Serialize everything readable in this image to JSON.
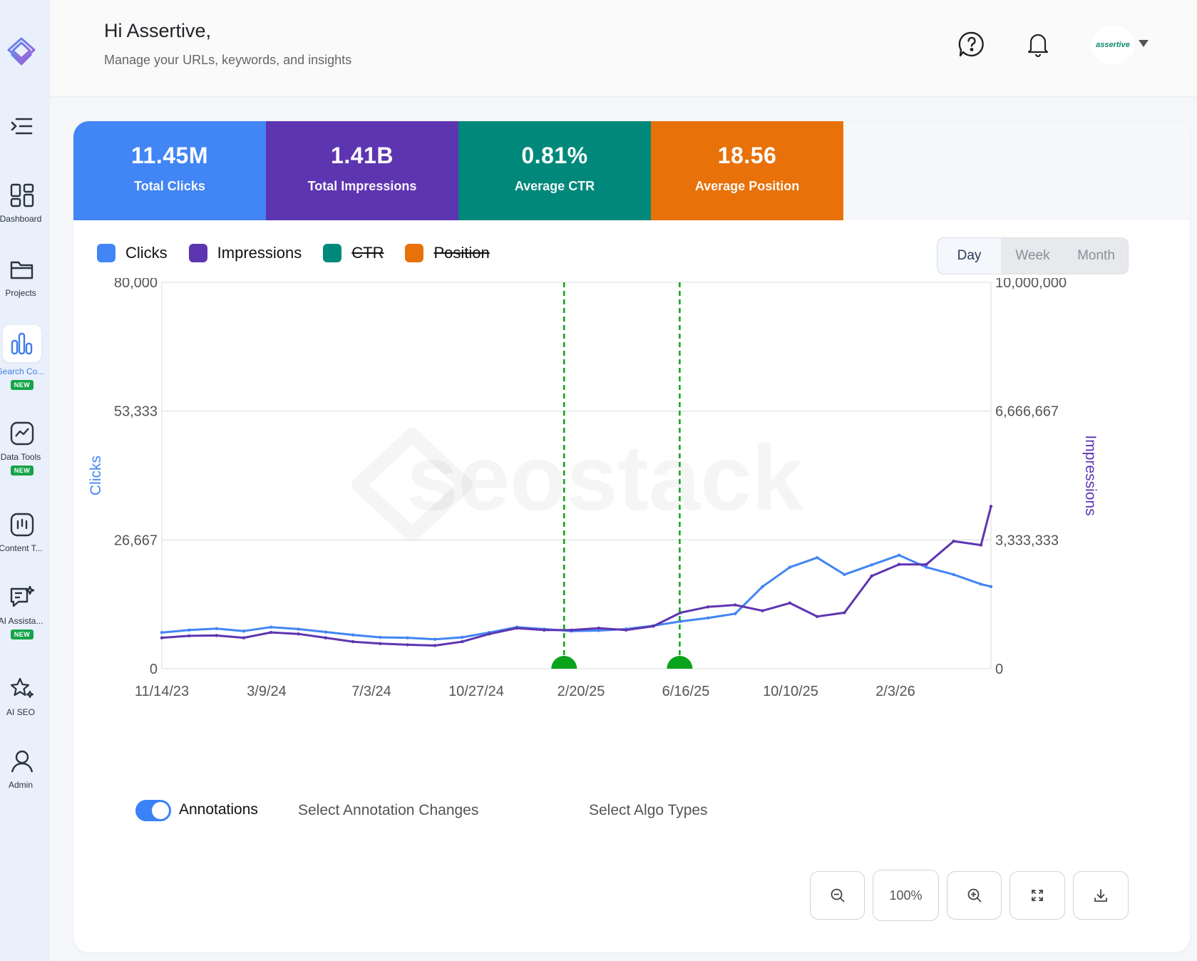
{
  "sidebar": {
    "items": [
      {
        "label": "Dashboard",
        "icon": "dashboard-icon"
      },
      {
        "label": "Projects",
        "icon": "folder-icon"
      },
      {
        "label": "Search Co...",
        "icon": "bar-chart-icon",
        "badge": "NEW"
      },
      {
        "label": "Data Tools",
        "icon": "trend-icon",
        "badge": "NEW"
      },
      {
        "label": "Content T...",
        "icon": "content-icon"
      },
      {
        "label": "AI Assista...",
        "icon": "ai-chat-icon",
        "badge": "NEW"
      },
      {
        "label": "AI SEO",
        "icon": "sparkle-star-icon"
      },
      {
        "label": "Admin",
        "icon": "user-icon"
      }
    ]
  },
  "header": {
    "greeting": "Hi Assertive,",
    "subtitle": "Manage your URLs, keywords, and insights",
    "avatar_text": "assertive"
  },
  "kpis": [
    {
      "value": "11.45M",
      "label": "Total Clicks",
      "color": "#4285f4"
    },
    {
      "value": "1.41B",
      "label": "Total Impressions",
      "color": "#5e35b1"
    },
    {
      "value": "0.81%",
      "label": "Average CTR",
      "color": "#00897b"
    },
    {
      "value": "18.56",
      "label": "Average Position",
      "color": "#e8710a"
    }
  ],
  "legend": [
    {
      "label": "Clicks",
      "color": "#4285f4",
      "active": true
    },
    {
      "label": "Impressions",
      "color": "#5e35b1",
      "active": true
    },
    {
      "label": "CTR",
      "color": "#00897b",
      "active": false
    },
    {
      "label": "Position",
      "color": "#e8710a",
      "active": false
    }
  ],
  "period": {
    "options": [
      "Day",
      "Week",
      "Month"
    ],
    "selected": "Day"
  },
  "chart_data": {
    "type": "line",
    "watermark": "seostack",
    "x_tick_labels": [
      "11/14/23",
      "3/9/24",
      "7/3/24",
      "10/27/24",
      "2/20/25",
      "6/16/25",
      "10/10/25",
      "2/3/26"
    ],
    "x_range": [
      "2023-11-14",
      "2026-05-13"
    ],
    "y_left": {
      "label": "Clicks",
      "min": 0,
      "max": 80000,
      "ticks": [
        "0",
        "26,667",
        "53,333",
        "80,000"
      ]
    },
    "y_right": {
      "label": "Impressions",
      "min": 0,
      "max": 10000000,
      "ticks": [
        "0",
        "3,333,333",
        "6,666,667",
        "10,000,000"
      ]
    },
    "annotations": [
      "2025-01-29",
      "2025-06-05"
    ],
    "series": [
      {
        "name": "Clicks",
        "axis": "left",
        "color": "#4285f4",
        "x": [
          "2023-11-14",
          "2023-12-14",
          "2024-01-13",
          "2024-02-12",
          "2024-03-13",
          "2024-04-12",
          "2024-05-12",
          "2024-06-11",
          "2024-07-11",
          "2024-08-10",
          "2024-09-09",
          "2024-10-09",
          "2024-11-08",
          "2024-12-08",
          "2025-01-07",
          "2025-02-06",
          "2025-03-08",
          "2025-04-07",
          "2025-05-07",
          "2025-06-06",
          "2025-07-06",
          "2025-08-05",
          "2025-09-04",
          "2025-10-04",
          "2025-11-03",
          "2025-12-03",
          "2026-01-02",
          "2026-02-01",
          "2026-03-03",
          "2026-04-02",
          "2026-05-02",
          "2026-05-13"
        ],
        "y": [
          7500,
          8000,
          8300,
          7800,
          8600,
          8200,
          7600,
          7000,
          6500,
          6400,
          6100,
          6500,
          7500,
          8600,
          8200,
          7800,
          7900,
          8200,
          8900,
          9800,
          10500,
          11400,
          17000,
          21000,
          23000,
          19500,
          21500,
          23500,
          21000,
          19500,
          17500,
          17000
        ]
      },
      {
        "name": "Impressions",
        "axis": "right",
        "color": "#5e35b1",
        "x": [
          "2023-11-14",
          "2023-12-14",
          "2024-01-13",
          "2024-02-12",
          "2024-03-13",
          "2024-04-12",
          "2024-05-12",
          "2024-06-11",
          "2024-07-11",
          "2024-08-10",
          "2024-09-09",
          "2024-10-09",
          "2024-11-08",
          "2024-12-08",
          "2025-01-07",
          "2025-02-06",
          "2025-03-08",
          "2025-04-07",
          "2025-05-07",
          "2025-06-06",
          "2025-07-06",
          "2025-08-05",
          "2025-09-04",
          "2025-10-04",
          "2025-11-03",
          "2025-12-03",
          "2026-01-02",
          "2026-02-01",
          "2026-03-03",
          "2026-04-02",
          "2026-05-02",
          "2026-05-13"
        ],
        "y": [
          800000,
          850000,
          860000,
          800000,
          940000,
          900000,
          800000,
          700000,
          650000,
          620000,
          600000,
          700000,
          900000,
          1050000,
          1000000,
          1000000,
          1050000,
          1000000,
          1100000,
          1450000,
          1600000,
          1650000,
          1500000,
          1700000,
          1350000,
          1450000,
          2400000,
          2700000,
          2700000,
          3300000,
          3200000,
          4200000
        ]
      }
    ]
  },
  "annotations_row": {
    "toggle_label": "Annotations",
    "toggle_on": true,
    "select_changes": "Select Annotation Changes",
    "select_algo": "Select Algo Types"
  },
  "zoom": {
    "level": "100%"
  }
}
